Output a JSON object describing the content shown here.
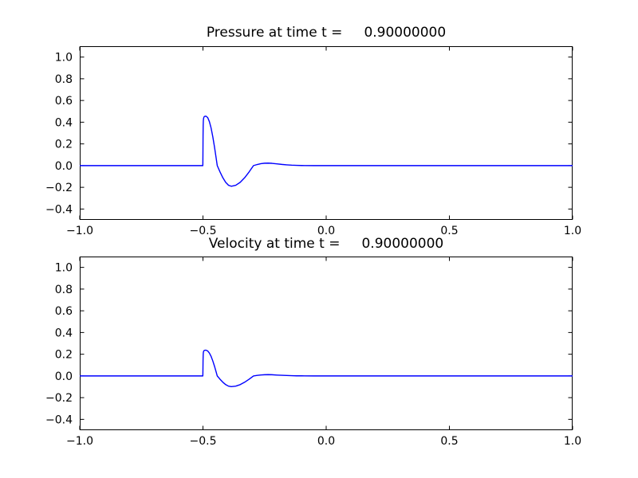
{
  "figure": {
    "background": "#ffffff",
    "frame_color": "#000000",
    "line_color": "#0000ff"
  },
  "chart_data": [
    {
      "type": "line",
      "title": "Pressure at time t =     0.90000000",
      "xlabel": "",
      "ylabel": "",
      "xlim": [
        -1.0,
        1.0
      ],
      "ylim": [
        -0.5,
        1.1
      ],
      "grid": false,
      "legend": "none",
      "frame_color": "#000000",
      "xticks": {
        "values": [
          -1.0,
          -0.5,
          0.0,
          0.5,
          1.0
        ],
        "labels": [
          "−1.0",
          "−0.5",
          "0.0",
          "0.5",
          "1.0"
        ]
      },
      "yticks": {
        "values": [
          -0.4,
          -0.2,
          0.0,
          0.2,
          0.4,
          0.6,
          0.8,
          1.0
        ],
        "labels": [
          "−0.4",
          "−0.2",
          "0.0",
          "0.2",
          "0.4",
          "0.6",
          "0.8",
          "1.0"
        ]
      },
      "series": [
        {
          "name": "pressure",
          "color": "#0000ff",
          "x": [
            -1.0,
            -0.51,
            -0.5005,
            -0.5,
            -0.4996,
            -0.4991,
            -0.4985,
            -0.4975,
            -0.496,
            -0.4945,
            -0.4925,
            -0.49,
            -0.4875,
            -0.4807,
            -0.4739,
            -0.467,
            -0.4602,
            -0.4534,
            -0.4466,
            -0.442,
            -0.4306,
            -0.4192,
            -0.4078,
            -0.3964,
            -0.385,
            -0.367,
            -0.349,
            -0.331,
            -0.313,
            -0.295,
            -0.28,
            -0.265,
            -0.25,
            -0.235,
            -0.22,
            -0.2,
            -0.18,
            -0.16,
            -0.14,
            -0.12,
            -0.1,
            -0.05,
            0.0,
            0.25,
            0.5,
            0.75,
            1.0
          ],
          "y": [
            0,
            0,
            0,
            0.14,
            0.28,
            0.37,
            0.412,
            0.434,
            0.447,
            0.451,
            0.454,
            0.455,
            0.455,
            0.442,
            0.405,
            0.346,
            0.267,
            0.174,
            0.071,
            0,
            -0.059,
            -0.112,
            -0.154,
            -0.181,
            -0.19,
            -0.181,
            -0.154,
            -0.112,
            -0.059,
            0,
            0.01,
            0.018,
            0.022,
            0.023,
            0.021,
            0.016,
            0.011,
            0.007,
            0.004,
            0.002,
            0.001,
            0,
            0,
            0,
            0,
            0,
            0
          ]
        }
      ]
    },
    {
      "type": "line",
      "title": "Velocity at time t =     0.90000000",
      "xlabel": "",
      "ylabel": "",
      "xlim": [
        -1.0,
        1.0
      ],
      "ylim": [
        -0.5,
        1.1
      ],
      "grid": false,
      "legend": "none",
      "frame_color": "#000000",
      "xticks": {
        "values": [
          -1.0,
          -0.5,
          0.0,
          0.5,
          1.0
        ],
        "labels": [
          "−1.0",
          "−0.5",
          "0.0",
          "0.5",
          "1.0"
        ]
      },
      "yticks": {
        "values": [
          -0.4,
          -0.2,
          0.0,
          0.2,
          0.4,
          0.6,
          0.8,
          1.0
        ],
        "labels": [
          "−0.4",
          "−0.2",
          "0.0",
          "0.2",
          "0.4",
          "0.6",
          "0.8",
          "1.0"
        ]
      },
      "series": [
        {
          "name": "velocity",
          "color": "#0000ff",
          "x": [
            -1.0,
            -0.51,
            -0.5005,
            -0.5,
            -0.4996,
            -0.4991,
            -0.4985,
            -0.4975,
            -0.496,
            -0.4945,
            -0.4925,
            -0.49,
            -0.4875,
            -0.4807,
            -0.4739,
            -0.467,
            -0.4602,
            -0.4534,
            -0.4466,
            -0.442,
            -0.4306,
            -0.4192,
            -0.4078,
            -0.3964,
            -0.385,
            -0.367,
            -0.349,
            -0.331,
            -0.313,
            -0.295,
            -0.28,
            -0.265,
            -0.25,
            -0.235,
            -0.22,
            -0.2,
            -0.18,
            -0.16,
            -0.14,
            -0.12,
            -0.1,
            -0.05,
            0.0,
            0.25,
            0.5,
            0.75,
            1.0
          ],
          "y": [
            0,
            0,
            0,
            0.073,
            0.146,
            0.192,
            0.214,
            0.226,
            0.232,
            0.235,
            0.236,
            0.237,
            0.237,
            0.23,
            0.211,
            0.18,
            0.139,
            0.091,
            0.037,
            0,
            -0.031,
            -0.058,
            -0.08,
            -0.094,
            -0.099,
            -0.094,
            -0.08,
            -0.058,
            -0.031,
            0,
            0.005,
            0.009,
            0.011,
            0.012,
            0.011,
            0.008,
            0.006,
            0.004,
            0.002,
            0.001,
            0.001,
            0,
            0,
            0,
            0,
            0,
            0
          ]
        }
      ]
    }
  ]
}
